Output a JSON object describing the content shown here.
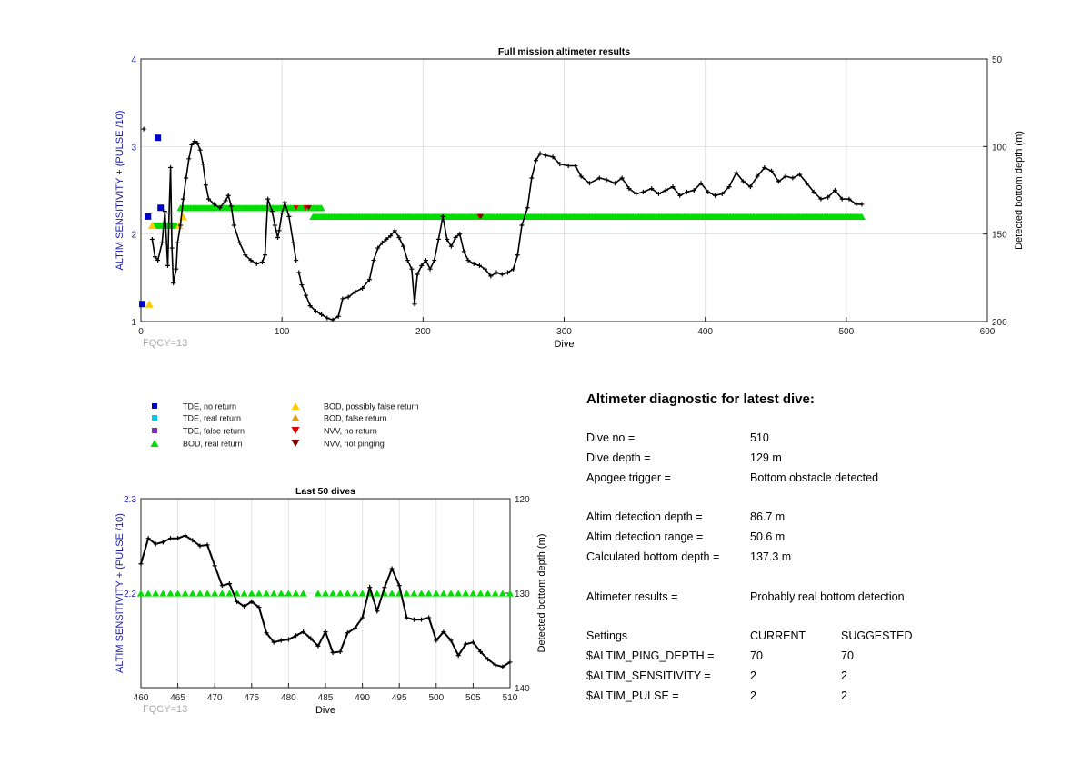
{
  "charts": {
    "main": {
      "title": "Full mission altimeter results",
      "xlabel": "Dive",
      "ylabel_left": "ALTIM SENSITIVITY + (PULSE /10)",
      "ylabel_right": "Detected bottom depth (m)",
      "note": "FQCY=13",
      "x_ticks": [
        "0",
        "100",
        "200",
        "300",
        "400",
        "500",
        "600"
      ],
      "y_left_ticks": [
        "1",
        "2",
        "3",
        "4"
      ],
      "y_right_ticks": [
        "50",
        "100",
        "150",
        "200"
      ]
    },
    "last50": {
      "title": "Last 50 dives",
      "xlabel": "Dive",
      "ylabel_left": "ALTIM SENSITIVITY + (PULSE /10)",
      "ylabel_right": "Detected bottom depth (m)",
      "note": "FQCY=13",
      "x_ticks": [
        "460",
        "465",
        "470",
        "475",
        "480",
        "485",
        "490",
        "495",
        "500",
        "505",
        "510"
      ],
      "y_left_ticks": [
        "2.2",
        "2.3"
      ],
      "y_right_ticks": [
        "120",
        "130",
        "140"
      ]
    }
  },
  "legend": [
    {
      "label": "TDE, no return",
      "marker": "square",
      "color": "#0000cc"
    },
    {
      "label": "TDE, real return",
      "marker": "square",
      "color": "#00ccee"
    },
    {
      "label": "TDE, false return",
      "marker": "square",
      "color": "#7b2fbe"
    },
    {
      "label": "BOD, real return",
      "marker": "triangle-up",
      "color": "#00dd00"
    },
    {
      "label": "BOD, possibly false return",
      "marker": "triangle-up",
      "color": "#ffcc00"
    },
    {
      "label": "BOD, false return",
      "marker": "triangle-up",
      "color": "#e8a000"
    },
    {
      "label": "NVV, no return",
      "marker": "triangle-down",
      "color": "#dd0000"
    },
    {
      "label": "NVV, not pinging",
      "marker": "triangle-down",
      "color": "#800000"
    }
  ],
  "diagnostic": {
    "title": "Altimeter diagnostic for latest dive:",
    "dive_no_label": "Dive no =",
    "dive_no": "510",
    "dive_depth_label": "Dive depth =",
    "dive_depth": "129 m",
    "apogee_label": "Apogee trigger =",
    "apogee": "Bottom obstacle detected",
    "det_depth_label": "Altim detection depth =",
    "det_depth": "86.7 m",
    "det_range_label": "Altim detection range =",
    "det_range": "50.6 m",
    "calc_depth_label": "Calculated bottom depth =",
    "calc_depth": "137.3 m",
    "results_label": "Altimeter results =",
    "results": "Probably real bottom detection",
    "settings_label": "Settings",
    "current_label": "CURRENT",
    "suggested_label": "SUGGESTED",
    "ping_depth_label": "$ALTIM_PING_DEPTH =",
    "ping_depth_current": "70",
    "ping_depth_suggested": "70",
    "sensitivity_label": "$ALTIM_SENSITIVITY =",
    "sensitivity_current": "2",
    "sensitivity_suggested": "2",
    "pulse_label": "$ALTIM_PULSE =",
    "pulse_current": "2",
    "pulse_suggested": "2"
  },
  "chart_data": [
    {
      "type": "scatter",
      "title": "Full mission altimeter results",
      "xlabel": "Dive",
      "ylabel": "ALTIM SENSITIVITY + (PULSE /10)",
      "y2label": "Detected bottom depth (m)",
      "xlim": [
        0,
        600
      ],
      "ylim": [
        1,
        4
      ],
      "y2lim": [
        50,
        200
      ],
      "y2_reversed": true,
      "grid": true,
      "series": [
        {
          "name": "TDE, no return",
          "points": [
            [
              1,
              1.2
            ],
            [
              5,
              2.2
            ],
            [
              12,
              3.1
            ],
            [
              14,
              2.3
            ]
          ]
        },
        {
          "name": "BOD, possibly false return",
          "points": [
            [
              6,
              1.2
            ],
            [
              8,
              2.1
            ],
            [
              27,
              2.1
            ],
            [
              30,
              2.2
            ]
          ]
        },
        {
          "name": "BOD, real return",
          "segments": [
            [
              8,
              25,
              2.1
            ],
            [
              28,
              128,
              2.3
            ],
            [
              122,
              511,
              2.2
            ]
          ]
        },
        {
          "name": "NVV, no return",
          "points": [
            [
              110,
              2.3
            ],
            [
              117,
              2.3
            ],
            [
              240,
              2.2
            ]
          ]
        },
        {
          "name": "NVV, not pinging",
          "points": [
            [
              119,
              2.3
            ],
            [
              241,
              2.2
            ]
          ]
        },
        {
          "name": "Detected bottom depth (m)",
          "axis": "right",
          "points": [
            [
              2,
              90
            ],
            [
              8,
              153
            ],
            [
              10,
              163
            ],
            [
              12,
              165
            ],
            [
              15,
              155
            ],
            [
              17,
              137
            ],
            [
              19,
              168
            ],
            [
              20,
              138
            ],
            [
              21,
              112
            ],
            [
              22,
              158
            ],
            [
              23,
              178
            ],
            [
              25,
              170
            ],
            [
              26,
              155
            ],
            [
              28,
              145
            ],
            [
              30,
              130
            ],
            [
              32,
              118
            ],
            [
              34,
              107
            ],
            [
              36,
              99
            ],
            [
              38,
              97
            ],
            [
              40,
              98
            ],
            [
              42,
              102
            ],
            [
              44,
              110
            ],
            [
              46,
              122
            ],
            [
              48,
              130
            ],
            [
              52,
              133
            ],
            [
              56,
              135
            ],
            [
              60,
              131
            ],
            [
              62,
              128
            ],
            [
              64,
              134
            ],
            [
              66,
              145
            ],
            [
              70,
              155
            ],
            [
              74,
              162
            ],
            [
              78,
              165
            ],
            [
              82,
              167
            ],
            [
              86,
              166
            ],
            [
              88,
              162
            ],
            [
              90,
              130
            ],
            [
              93,
              137
            ],
            [
              95,
              145
            ],
            [
              97,
              152
            ],
            [
              98,
              148
            ],
            [
              100,
              138
            ],
            [
              102,
              132
            ],
            [
              105,
              140
            ],
            [
              108,
              155
            ],
            [
              110,
              165
            ],
            [
              112,
              172
            ],
            [
              114,
              179
            ],
            [
              117,
              185
            ],
            [
              120,
              191
            ],
            [
              124,
              194
            ],
            [
              128,
              196
            ],
            [
              132,
              198
            ],
            [
              136,
              199
            ],
            [
              140,
              197
            ],
            [
              143,
              187
            ],
            [
              147,
              186
            ],
            [
              152,
              183
            ],
            [
              157,
              181
            ],
            [
              162,
              176
            ],
            [
              165,
              165
            ],
            [
              168,
              158
            ],
            [
              171,
              155
            ],
            [
              174,
              153
            ],
            [
              177,
              151
            ],
            [
              180,
              148
            ],
            [
              183,
              152
            ],
            [
              186,
              157
            ],
            [
              189,
              165
            ],
            [
              192,
              170
            ],
            [
              194,
              190
            ],
            [
              196,
              173
            ],
            [
              199,
              168
            ],
            [
              202,
              165
            ],
            [
              205,
              170
            ],
            [
              208,
              165
            ],
            [
              211,
              153
            ],
            [
              214,
              140
            ],
            [
              217,
              153
            ],
            [
              220,
              157
            ],
            [
              223,
              152
            ],
            [
              226,
              150
            ],
            [
              229,
              160
            ],
            [
              232,
              165
            ],
            [
              236,
              167
            ],
            [
              240,
              168
            ],
            [
              244,
              170
            ],
            [
              248,
              174
            ],
            [
              252,
              172
            ],
            [
              256,
              173
            ],
            [
              260,
              172
            ],
            [
              264,
              170
            ],
            [
              267,
              162
            ],
            [
              270,
              145
            ],
            [
              274,
              135
            ],
            [
              277,
              118
            ],
            [
              280,
              108
            ],
            [
              283,
              104
            ],
            [
              287,
              105
            ],
            [
              292,
              106
            ],
            [
              297,
              110
            ],
            [
              303,
              111
            ],
            [
              308,
              111
            ],
            [
              312,
              117
            ],
            [
              318,
              121
            ],
            [
              325,
              118
            ],
            [
              330,
              119
            ],
            [
              336,
              121
            ],
            [
              341,
              118
            ],
            [
              346,
              124
            ],
            [
              351,
              127
            ],
            [
              356,
              126
            ],
            [
              362,
              124
            ],
            [
              367,
              127
            ],
            [
              372,
              125
            ],
            [
              377,
              123
            ],
            [
              382,
              128
            ],
            [
              387,
              126
            ],
            [
              392,
              125
            ],
            [
              397,
              121
            ],
            [
              402,
              126
            ],
            [
              407,
              128
            ],
            [
              412,
              127
            ],
            [
              417,
              123
            ],
            [
              422,
              115
            ],
            [
              427,
              120
            ],
            [
              432,
              123
            ],
            [
              437,
              117
            ],
            [
              442,
              112
            ],
            [
              447,
              114
            ],
            [
              452,
              120
            ],
            [
              457,
              117
            ],
            [
              462,
              118
            ],
            [
              467,
              116
            ],
            [
              472,
              121
            ],
            [
              477,
              126
            ],
            [
              482,
              130
            ],
            [
              487,
              129
            ],
            [
              492,
              125
            ],
            [
              497,
              130
            ],
            [
              502,
              130
            ],
            [
              507,
              133
            ],
            [
              511,
              133
            ]
          ]
        }
      ]
    },
    {
      "type": "scatter",
      "title": "Last 50 dives",
      "xlabel": "Dive",
      "ylabel": "ALTIM SENSITIVITY + (PULSE /10)",
      "y2label": "Detected bottom depth (m)",
      "xlim": [
        460,
        510
      ],
      "ylim": [
        2.1,
        2.3
      ],
      "y2lim": [
        120,
        140
      ],
      "y2_reversed": true,
      "grid": true,
      "series": [
        {
          "name": "BOD, real return",
          "x": [
            460,
            461,
            462,
            463,
            464,
            465,
            466,
            467,
            468,
            469,
            470,
            471,
            472,
            473,
            474,
            475,
            476,
            477,
            478,
            479,
            480,
            481,
            482,
            484,
            485,
            486,
            487,
            488,
            489,
            490,
            491,
            492,
            493,
            494,
            495,
            496,
            497,
            498,
            499,
            500,
            501,
            502,
            503,
            504,
            505,
            506,
            507,
            508,
            509,
            510
          ],
          "y": 2.2
        },
        {
          "name": "Detected bottom depth (m)",
          "axis": "right",
          "x": [
            460,
            461,
            462,
            463,
            464,
            465,
            466,
            467,
            468,
            469,
            470,
            471,
            472,
            473,
            474,
            475,
            476,
            477,
            478,
            479,
            480,
            481,
            482,
            483,
            484,
            485,
            486,
            487,
            488,
            489,
            490,
            491,
            492,
            493,
            494,
            495,
            496,
            497,
            498,
            499,
            500,
            501,
            502,
            503,
            504,
            505,
            506,
            507,
            508,
            509,
            510
          ],
          "y": [
            126.9,
            124.2,
            124.8,
            124.6,
            124.2,
            124.2,
            123.9,
            124.4,
            125.0,
            124.9,
            127.1,
            129.2,
            129.0,
            130.9,
            131.4,
            130.9,
            131.5,
            134.2,
            135.2,
            135.0,
            134.9,
            134.5,
            134.1,
            134.8,
            135.6,
            134.1,
            136.3,
            136.2,
            134.2,
            133.7,
            132.6,
            129.4,
            131.9,
            129.4,
            127.4,
            129.2,
            132.6,
            132.8,
            132.8,
            132.6,
            135.0,
            134.1,
            135.0,
            136.6,
            135.4,
            135.2,
            136.2,
            137.0,
            137.6,
            137.8,
            137.3
          ]
        }
      ]
    }
  ]
}
